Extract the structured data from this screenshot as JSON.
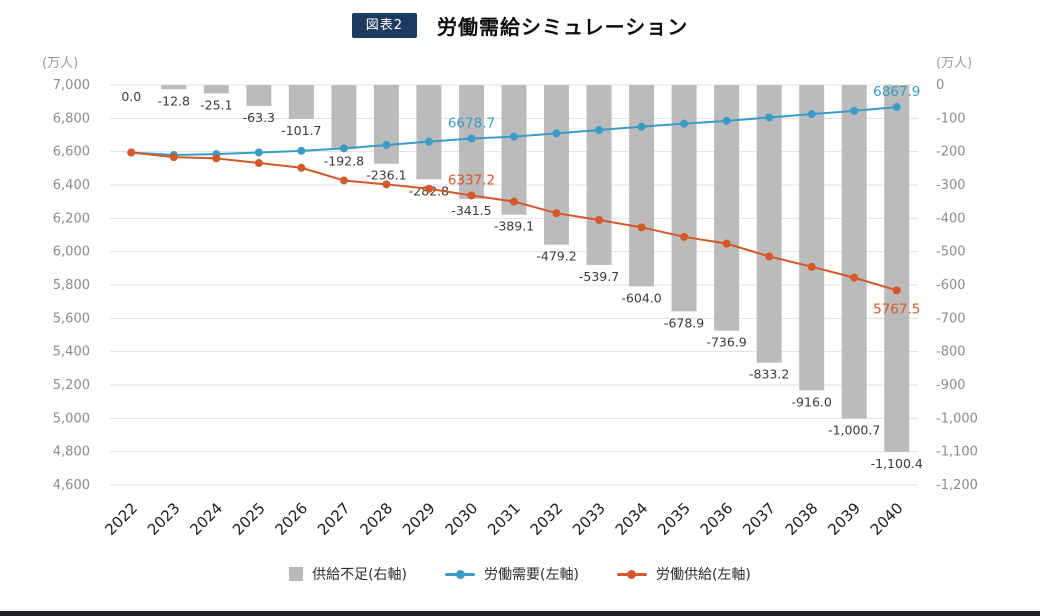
{
  "header": {
    "badge": "図表2",
    "title": "労働需給シミュレーション"
  },
  "chart_data": {
    "type": "bar",
    "subtype": "combo-bar-line",
    "title": "労働需給シミュレーション",
    "left_axis": {
      "unit": "(万人)",
      "min": 4600,
      "max": 7000,
      "step": 200
    },
    "right_axis": {
      "unit": "(万人)",
      "min": -1200,
      "max": 0,
      "step": 100
    },
    "grid": true,
    "legend_position": "bottom",
    "categories": [
      2022,
      2023,
      2024,
      2025,
      2026,
      2027,
      2028,
      2029,
      2030,
      2031,
      2032,
      2033,
      2034,
      2035,
      2036,
      2037,
      2038,
      2039,
      2040
    ],
    "series": [
      {
        "name": "供給不足(右軸)",
        "type": "bar",
        "axis": "right",
        "color": "#bbbbbb",
        "values": [
          0.0,
          -12.8,
          -25.1,
          -63.3,
          -101.7,
          -192.8,
          -236.1,
          -282.8,
          -341.5,
          -389.1,
          -479.2,
          -539.7,
          -604.0,
          -678.9,
          -736.9,
          -833.2,
          -916.0,
          -1000.7,
          -1100.4
        ]
      },
      {
        "name": "労働需要(左軸)",
        "type": "line",
        "axis": "left",
        "color": "#3a9cc6",
        "values": [
          6595,
          6580,
          6585,
          6595,
          6605,
          6620,
          6640,
          6660,
          6678.7,
          6690,
          6710,
          6730,
          6750,
          6768,
          6785,
          6805,
          6825,
          6845,
          6867.9
        ]
      },
      {
        "name": "労働供給(左軸)",
        "type": "line",
        "axis": "left",
        "color": "#d4582a",
        "values": [
          6595,
          6567.2,
          6559.9,
          6531.7,
          6503.3,
          6427.2,
          6403.9,
          6377.2,
          6337.2,
          6300.9,
          6230.8,
          6190.3,
          6146.0,
          6089.1,
          6048.1,
          5971.8,
          5909.0,
          5844.3,
          5767.5
        ]
      }
    ],
    "bar_labels": [
      "0.0",
      "-12.8",
      "-25.1",
      "-63.3",
      "-101.7",
      "-192.8",
      "-236.1",
      "-282.8",
      "-341.5",
      "-389.1",
      "-479.2",
      "-539.7",
      "-604.0",
      "-678.9",
      "-736.9",
      "-833.2",
      "-916.0",
      "-1,000.7",
      "-1,100.4"
    ],
    "point_labels": [
      {
        "series": 1,
        "index": 8,
        "text": "6678.7",
        "position": "above"
      },
      {
        "series": 2,
        "index": 8,
        "text": "6337.2",
        "position": "above"
      },
      {
        "series": 1,
        "index": 18,
        "text": "6867.9",
        "position": "above"
      },
      {
        "series": 2,
        "index": 18,
        "text": "5767.5",
        "position": "below"
      }
    ]
  }
}
